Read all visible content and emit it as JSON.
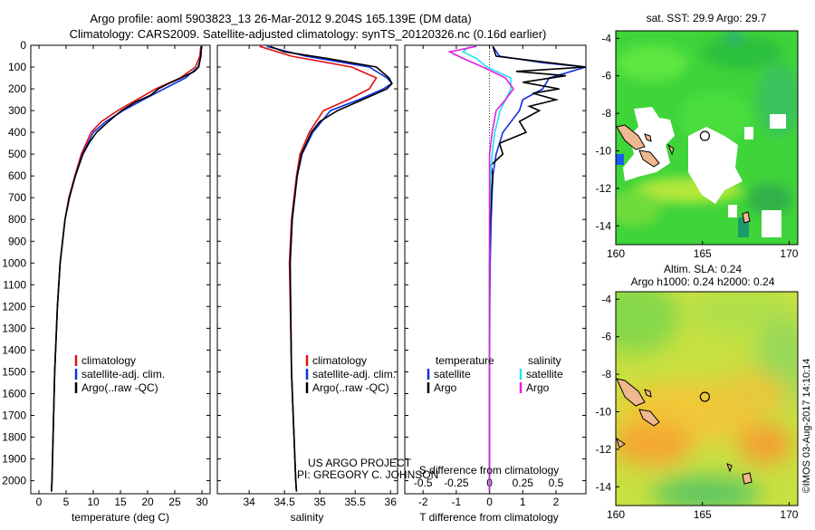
{
  "header": {
    "line1": "Argo profile: aoml 5903823_13 26-Mar-2012 9.204S 165.139E (DM data)",
    "line2": "Climatology: CARS2009. Satellite-adjusted climatology: synTS_20120326.nc (0.16d earlier)"
  },
  "credit": {
    "project": "US ARGO PROJECT",
    "pi": "PI: GREGORY C. JOHNSON",
    "stamp": "©IMOS 03-Aug-2017 14:10:14"
  },
  "colors": {
    "climatology": "#e01010",
    "satellite": "#1030e0",
    "argo": "#000000",
    "salinity_satellite": "#20e0f0",
    "salinity_argo": "#e020e0"
  },
  "depth_axis": {
    "ticks": [
      0,
      100,
      200,
      300,
      400,
      500,
      600,
      700,
      800,
      900,
      1000,
      1100,
      1200,
      1300,
      1400,
      1500,
      1600,
      1700,
      1800,
      1900,
      2000
    ],
    "ylim": [
      0,
      2060
    ]
  },
  "chart_data": [
    {
      "type": "line",
      "id": "temperature",
      "xlabel": "temperature (deg C)",
      "xlim": [
        -1.5,
        31.5
      ],
      "xticks": [
        0,
        5,
        10,
        15,
        20,
        25,
        30
      ],
      "legend": [
        "climatology",
        "satellite-adj. clim.",
        "Argo(..raw -QC)"
      ],
      "series": [
        {
          "name": "climatology",
          "depth": [
            5,
            50,
            100,
            150,
            200,
            250,
            300,
            350,
            400,
            500,
            600,
            700,
            800,
            1000,
            1200,
            1500,
            2000,
            2050
          ],
          "values": [
            29.8,
            29.6,
            28.8,
            26,
            21.5,
            18,
            14.5,
            11.5,
            9.6,
            7.8,
            6.6,
            5.5,
            4.8,
            3.9,
            3.4,
            2.9,
            2.4,
            2.3
          ]
        },
        {
          "name": "satellite",
          "depth": [
            5,
            50,
            100,
            150,
            200,
            250,
            300,
            350,
            400,
            500,
            600,
            700,
            800,
            1000,
            1200,
            1500,
            2000,
            2050
          ],
          "values": [
            29.9,
            29.8,
            29.3,
            27,
            23,
            19.2,
            15.5,
            12.3,
            10,
            8,
            6.7,
            5.6,
            4.8,
            3.9,
            3.4,
            2.9,
            2.4,
            2.3
          ]
        },
        {
          "name": "Argo",
          "depth": [
            5,
            50,
            100,
            120,
            150,
            180,
            200,
            230,
            260,
            300,
            350,
            400,
            450,
            500,
            600,
            700,
            800,
            1000,
            1200,
            1500,
            2000,
            2050
          ],
          "values": [
            29.9,
            29.8,
            29.4,
            28.6,
            26.2,
            23.5,
            22,
            20.5,
            17.8,
            15.2,
            12.8,
            10.6,
            9.2,
            8.1,
            6.7,
            5.6,
            4.8,
            3.9,
            3.4,
            2.9,
            2.4,
            2.3
          ]
        }
      ]
    },
    {
      "type": "line",
      "id": "salinity",
      "xlabel": "salinity",
      "xlim": [
        33.55,
        36.1
      ],
      "xticks": [
        34,
        34.5,
        35,
        35.5,
        36
      ],
      "legend": [
        "climatology",
        "satellite-adj. clim.",
        "Argo(..raw -QC)"
      ],
      "series": [
        {
          "name": "climatology",
          "depth": [
            5,
            50,
            100,
            150,
            200,
            250,
            300,
            400,
            500,
            600,
            800,
            1000,
            1500,
            2000,
            2050
          ],
          "values": [
            34.15,
            34.6,
            35.45,
            35.8,
            35.7,
            35.4,
            35.05,
            34.85,
            34.72,
            34.67,
            34.6,
            34.57,
            34.6,
            34.66,
            34.67
          ]
        },
        {
          "name": "satellite",
          "depth": [
            5,
            50,
            100,
            150,
            175,
            200,
            250,
            300,
            400,
            500,
            600,
            800,
            1000,
            1500,
            2000,
            2050
          ],
          "values": [
            34.25,
            34.8,
            35.7,
            35.95,
            36.02,
            35.9,
            35.55,
            35.15,
            34.9,
            34.75,
            34.68,
            34.61,
            34.58,
            34.6,
            34.66,
            34.67
          ]
        },
        {
          "name": "Argo",
          "depth": [
            5,
            30,
            60,
            100,
            150,
            175,
            200,
            250,
            300,
            350,
            400,
            500,
            600,
            800,
            1000,
            1500,
            2000,
            2050
          ],
          "values": [
            34.3,
            34.5,
            35.1,
            35.8,
            35.98,
            36.02,
            35.95,
            35.6,
            35.25,
            35.0,
            34.88,
            34.74,
            34.68,
            34.61,
            34.58,
            34.6,
            34.66,
            34.67
          ]
        }
      ]
    },
    {
      "type": "line",
      "id": "difference",
      "xlabel_bottom": "T difference from climatology",
      "xlabel_top": "S difference from climatology",
      "xlim": [
        -2.55,
        2.9
      ],
      "xticks_T": [
        -2,
        -1,
        0,
        1,
        2
      ],
      "xticks_S": [
        -0.5,
        -0.25,
        0,
        0.25,
        0.5
      ],
      "s_scale": 4,
      "legend_temperature_title": "temperature",
      "legend_salinity_title": "salinity",
      "legend_temperature": [
        "satellite",
        "Argo"
      ],
      "legend_salinity": [
        "satellite",
        "Argo"
      ],
      "series": [
        {
          "name": "T satellite",
          "kind": "T",
          "depth": [
            5,
            50,
            80,
            100,
            150,
            200,
            250,
            300,
            400,
            500,
            600,
            800,
            1000,
            1200,
            1500,
            2000,
            2050
          ],
          "values": [
            0.1,
            0.3,
            1.6,
            3.0,
            1.8,
            1.6,
            1.0,
            0.9,
            0.4,
            0.2,
            0.1,
            0.05,
            0.02,
            0.01,
            0.0,
            0.0,
            0.0
          ]
        },
        {
          "name": "T Argo",
          "kind": "T",
          "depth": [
            5,
            50,
            80,
            100,
            120,
            140,
            170,
            200,
            220,
            250,
            280,
            300,
            350,
            400,
            450,
            500,
            550,
            600,
            700,
            800,
            1000,
            1200,
            1500,
            2000,
            2050
          ],
          "values": [
            0.1,
            0.2,
            1.8,
            2.9,
            0.8,
            2.3,
            1.0,
            2.1,
            1.3,
            2.0,
            1.2,
            1.5,
            0.9,
            1.1,
            0.3,
            0.4,
            0.05,
            0.1,
            0.05,
            0.02,
            0.0,
            0.0,
            0.0,
            0.0,
            0.0
          ]
        },
        {
          "name": "S satellite",
          "kind": "S",
          "depth": [
            5,
            30,
            60,
            100,
            150,
            200,
            250,
            300,
            400,
            500,
            600,
            800,
            1000,
            1500,
            2000,
            2050
          ],
          "values": [
            -0.15,
            -0.2,
            -0.1,
            -0.02,
            0.16,
            0.16,
            0.12,
            0.08,
            0.04,
            0.02,
            0.01,
            0.0,
            0.0,
            0.0,
            0.0,
            0.0
          ]
        },
        {
          "name": "S Argo",
          "kind": "S",
          "depth": [
            5,
            30,
            60,
            100,
            150,
            200,
            250,
            300,
            400,
            500,
            600,
            800,
            1000,
            1500,
            2000,
            2050
          ],
          "values": [
            -0.1,
            -0.3,
            -0.2,
            -0.05,
            0.12,
            0.18,
            0.12,
            0.05,
            0.02,
            0.0,
            0.0,
            0.0,
            0.0,
            0.0,
            0.0,
            0.0
          ]
        }
      ]
    }
  ],
  "maps": [
    {
      "id": "sst",
      "title": "sat. SST: 29.9 Argo: 29.7",
      "title2": "",
      "xlim": [
        160,
        170.5
      ],
      "ylim": [
        -15,
        -3.6
      ],
      "xticks": [
        160,
        165,
        170
      ],
      "yticks": [
        -4,
        -6,
        -8,
        -10,
        -12,
        -14
      ],
      "marker": {
        "lon": 165.139,
        "lat": -9.204
      }
    },
    {
      "id": "sla",
      "title": "Altim. SLA: 0.24",
      "title2": "Argo h1000: 0.24 h2000: 0.24",
      "xlim": [
        160,
        170.5
      ],
      "ylim": [
        -15,
        -3.6
      ],
      "xticks": [
        160,
        165,
        170
      ],
      "yticks": [
        -4,
        -6,
        -8,
        -10,
        -12,
        -14
      ],
      "marker": {
        "lon": 165.139,
        "lat": -9.204
      }
    }
  ]
}
